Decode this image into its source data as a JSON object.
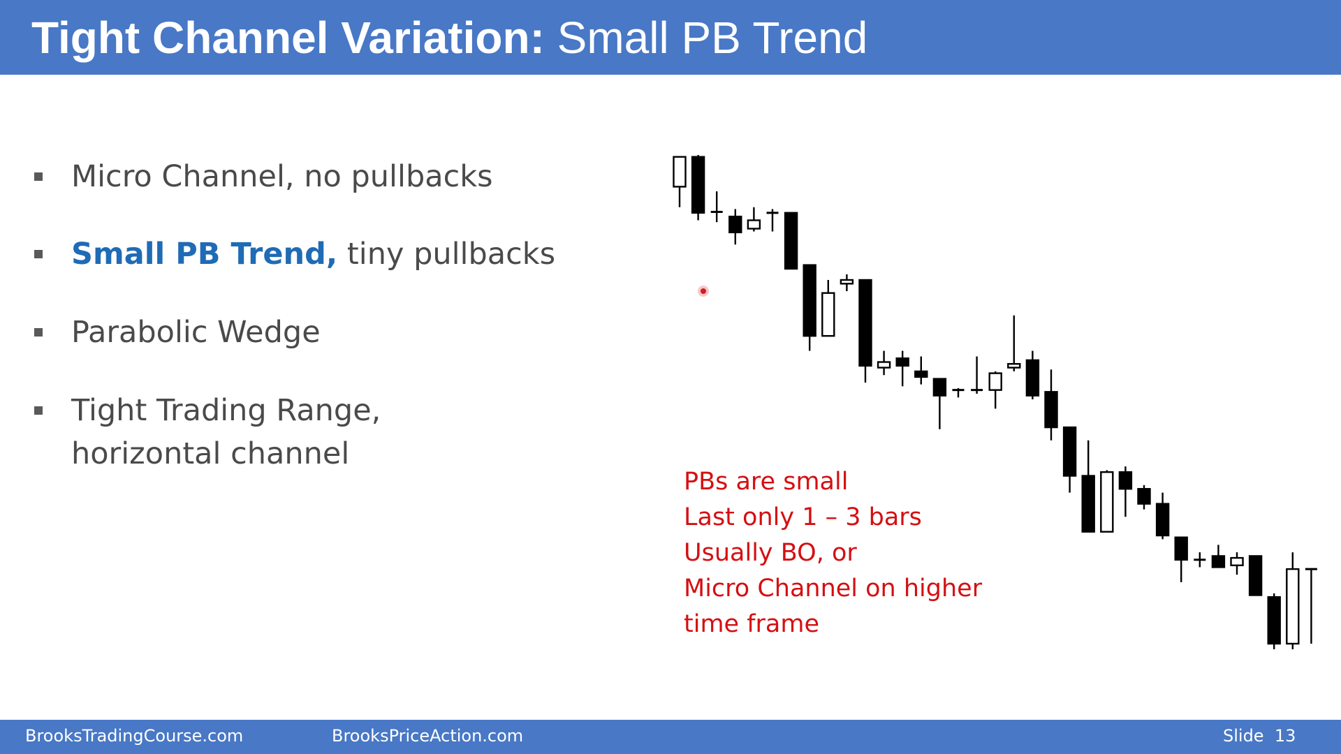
{
  "title": {
    "bold": "Tight Channel Variation:",
    "normal": "Small PB Trend"
  },
  "bullets": [
    {
      "highlight": "",
      "lines": [
        "Micro Channel, no pullbacks"
      ]
    },
    {
      "highlight": "Small PB Trend,",
      "lines": [
        "tiny pullbacks"
      ]
    },
    {
      "highlight": "",
      "lines": [
        "Parabolic Wedge"
      ]
    },
    {
      "highlight": "",
      "lines": [
        "Tight Trading Range,",
        "horizontal channel"
      ]
    }
  ],
  "note": {
    "lines": [
      "PBs are small",
      "Last only 1 – 3 bars",
      "Usually BO, or",
      "Micro Channel on higher",
      "time frame"
    ]
  },
  "footer": {
    "left": "BrooksTradingCourse.com",
    "middle": "BrooksPriceAction.com",
    "slide_label": "Slide",
    "slide_number": "13"
  },
  "chart_data": {
    "type": "candlestick",
    "title": "",
    "xlabel": "",
    "ylabel": "",
    "axes_shown": false,
    "grid": false,
    "price_scale_note": "no axis printed; values are relative price units (higher = higher price)",
    "bullish_color": "#ffffff",
    "bearish_color": "#000000",
    "bars": [
      {
        "open": 90.2,
        "high": 95.4,
        "low": 85.8,
        "close": 96.6
      },
      {
        "open": 96.6,
        "high": 97.0,
        "low": 83.0,
        "close": 84.6
      },
      {
        "open": 84.8,
        "high": 89.2,
        "low": 82.6,
        "close": 84.8
      },
      {
        "open": 83.8,
        "high": 85.4,
        "low": 77.8,
        "close": 80.4
      },
      {
        "open": 81.2,
        "high": 85.8,
        "low": 80.6,
        "close": 83.0
      },
      {
        "open": 84.6,
        "high": 85.4,
        "low": 80.6,
        "close": 84.6
      },
      {
        "open": 84.6,
        "high": 84.6,
        "low": 72.6,
        "close": 72.6
      },
      {
        "open": 73.4,
        "high": 73.4,
        "low": 55.0,
        "close": 58.2
      },
      {
        "open": 58.2,
        "high": 70.2,
        "low": 58.2,
        "close": 67.4
      },
      {
        "open": 69.4,
        "high": 71.4,
        "low": 67.8,
        "close": 70.2
      },
      {
        "open": 70.2,
        "high": 70.2,
        "low": 48.2,
        "close": 51.8
      },
      {
        "open": 51.4,
        "high": 55.0,
        "low": 49.8,
        "close": 52.6
      },
      {
        "open": 53.4,
        "high": 55.0,
        "low": 47.4,
        "close": 51.8
      },
      {
        "open": 50.6,
        "high": 53.8,
        "low": 47.8,
        "close": 49.4
      },
      {
        "open": 49.0,
        "high": 49.0,
        "low": 38.2,
        "close": 45.4
      },
      {
        "open": 46.2,
        "high": 47.0,
        "low": 45.0,
        "close": 46.6
      },
      {
        "open": 46.6,
        "high": 53.8,
        "low": 45.8,
        "close": 46.6
      },
      {
        "open": 46.6,
        "high": 50.6,
        "low": 42.6,
        "close": 50.2
      },
      {
        "open": 51.4,
        "high": 62.6,
        "low": 50.6,
        "close": 52.2
      },
      {
        "open": 53.0,
        "high": 55.0,
        "low": 44.6,
        "close": 45.4
      },
      {
        "open": 46.2,
        "high": 51.0,
        "low": 35.8,
        "close": 38.6
      },
      {
        "open": 38.6,
        "high": 38.6,
        "low": 24.6,
        "close": 28.2
      },
      {
        "open": 28.2,
        "high": 35.8,
        "low": 19.0,
        "close": 16.2
      },
      {
        "open": 16.2,
        "high": 29.4,
        "low": 17.4,
        "close": 29.0
      },
      {
        "open": 29.0,
        "high": 30.2,
        "low": 19.4,
        "close": 25.4
      },
      {
        "open": 25.4,
        "high": 26.2,
        "low": 21.0,
        "close": 22.2
      },
      {
        "open": 22.2,
        "high": 24.6,
        "low": 14.6,
        "close": 15.4
      },
      {
        "open": 15.0,
        "high": 15.0,
        "low": 5.4,
        "close": 10.2
      },
      {
        "open": 10.2,
        "high": 11.8,
        "low": 8.6,
        "close": 10.2
      },
      {
        "open": 11.0,
        "high": 13.4,
        "low": 8.6,
        "close": 8.6
      },
      {
        "open": 9.0,
        "high": 11.8,
        "low": 7.0,
        "close": 10.6
      },
      {
        "open": 11.0,
        "high": 11.0,
        "low": 3.8,
        "close": 2.6
      },
      {
        "open": 2.2,
        "high": 3.0,
        "low": -9.0,
        "close": -7.8
      },
      {
        "open": -7.8,
        "high": 11.8,
        "low": -9.0,
        "close": 8.2
      },
      {
        "open": 8.2,
        "high": 8.2,
        "low": -7.8,
        "close": 8.2
      }
    ]
  }
}
